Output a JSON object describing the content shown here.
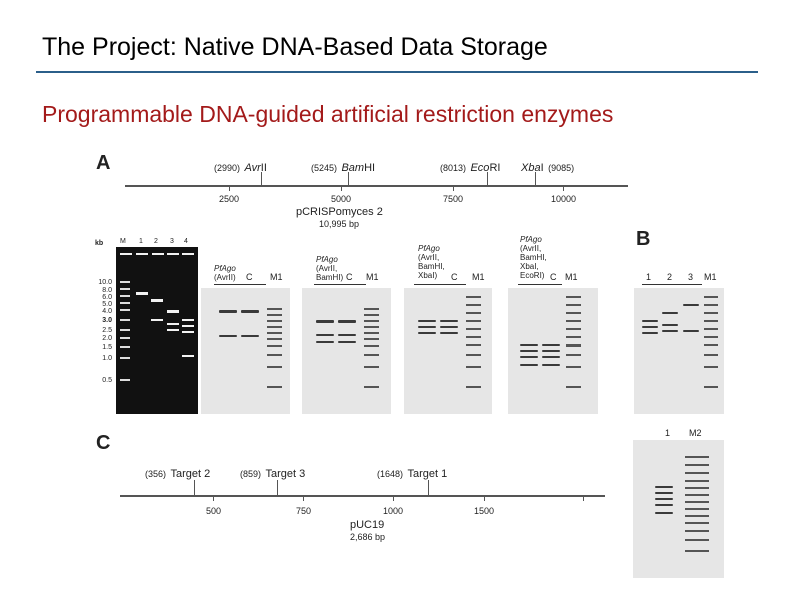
{
  "title": "The Project: Native DNA-Based Data Storage",
  "subtitle": "Programmable DNA-guided artificial restriction enzymes",
  "panel_a": {
    "letter": "A",
    "sites": [
      {
        "pos": "(2990)",
        "name_italic": "Avr",
        "name_rest": "II"
      },
      {
        "pos": "(5245)",
        "name_italic": "Bam",
        "name_rest": "HI"
      },
      {
        "pos": "(8013)",
        "name_italic": "Eco",
        "name_rest": "RI"
      },
      {
        "pos": "(9085)",
        "name_italic": "Xba",
        "name_rest": "I",
        "label_first": true
      }
    ],
    "ticks": [
      "2500",
      "5000",
      "7500",
      "10000"
    ],
    "plasmid": "pCRISPomyces 2",
    "plasmid_size": "10,995 bp",
    "marker_gel": {
      "kb_label": "kb",
      "lanes": [
        "M",
        "1",
        "2",
        "3",
        "4"
      ],
      "sizes": [
        "10.0",
        "8.0",
        "6.0",
        "5.0",
        "4.0",
        "3.0",
        "2.5",
        "2.0",
        "1.5",
        "1.0",
        "0.5"
      ]
    },
    "gels": [
      {
        "cond": [
          "PfAgo",
          "(AvrII)"
        ],
        "lanes": [
          "C",
          "M1"
        ]
      },
      {
        "cond": [
          "PfAgo",
          "(AvrII,",
          "BamHI)"
        ],
        "lanes": [
          "C",
          "M1"
        ]
      },
      {
        "cond": [
          "PfAgo",
          "(AvrII,",
          "BamHI,",
          "XbaI)"
        ],
        "lanes": [
          "C",
          "M1"
        ]
      },
      {
        "cond": [
          "PfAgo",
          "(AvrII,",
          "BamHI,",
          "XbaI,",
          "EcoRI)"
        ],
        "lanes": [
          "C",
          "M1"
        ]
      }
    ]
  },
  "panel_b": {
    "letter": "B",
    "lanes": [
      "1",
      "2",
      "3",
      "M1"
    ]
  },
  "panel_c": {
    "letter": "C",
    "sites": [
      {
        "pos": "(356)",
        "name": "Target 2"
      },
      {
        "pos": "(859)",
        "name": "Target 3"
      },
      {
        "pos": "(1648)",
        "name": "Target 1"
      }
    ],
    "ticks": [
      "500",
      "750",
      "1000",
      "1500"
    ],
    "plasmid": "pUC19",
    "plasmid_size": "2,686 bp",
    "gel_lanes": [
      "1",
      "M2"
    ]
  }
}
